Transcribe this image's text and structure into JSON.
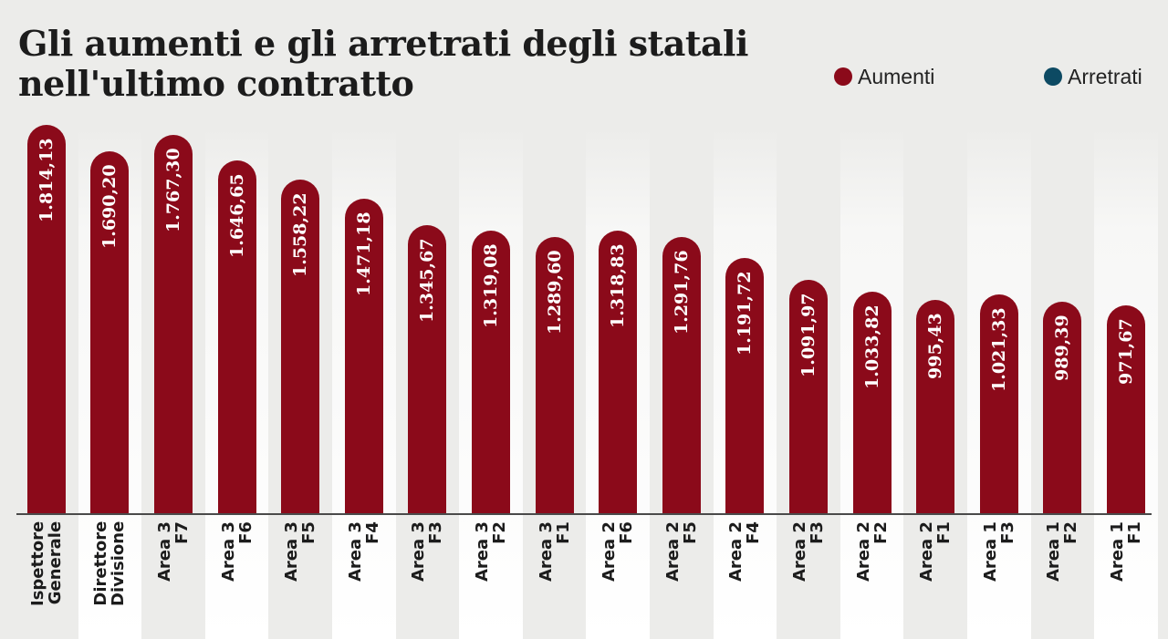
{
  "chart_data": {
    "type": "bar",
    "title": "Gli aumenti e gli arretrati degli statali nell'ultimo contratto",
    "legend": [
      {
        "name": "Aumenti",
        "color": "#8b0a1a"
      },
      {
        "name": "Arretrati",
        "color": "#0d4a63"
      }
    ],
    "categories": [
      [
        "Ispettore",
        "Generale"
      ],
      [
        "Direttore",
        "Divisione"
      ],
      [
        "Area 3",
        "F7"
      ],
      [
        "Area 3",
        "F6"
      ],
      [
        "Area 3",
        "F5"
      ],
      [
        "Area 3",
        "F4"
      ],
      [
        "Area 3",
        "F3"
      ],
      [
        "Area 3",
        "F2"
      ],
      [
        "Area 3",
        "F1"
      ],
      [
        "Area 2",
        "F6"
      ],
      [
        "Area 2",
        "F5"
      ],
      [
        "Area 2",
        "F4"
      ],
      [
        "Area 2",
        "F3"
      ],
      [
        "Area 2",
        "F2"
      ],
      [
        "Area 2",
        "F1"
      ],
      [
        "Area 1",
        "F3"
      ],
      [
        "Area 1",
        "F2"
      ],
      [
        "Area 1",
        "F1"
      ]
    ],
    "series": [
      {
        "name": "Aumenti",
        "color": "#8b0a1a",
        "values": [
          1814.13,
          1690.2,
          1767.3,
          1646.65,
          1558.22,
          1471.18,
          1345.67,
          1319.08,
          1289.6,
          1318.83,
          1291.76,
          1191.72,
          1091.97,
          1033.82,
          995.43,
          1021.33,
          989.39,
          971.67
        ],
        "labels": [
          "1.814,13",
          "1.690,20",
          "1.767,30",
          "1.646,65",
          "1.558,22",
          "1.471,18",
          "1.345,67",
          "1.319,08",
          "1.289,60",
          "1.318,83",
          "1.291,76",
          "1.191,72",
          "1.091,97",
          "1.033,82",
          "995,43",
          "1.021,33",
          "989,39",
          "971,67"
        ]
      }
    ],
    "ylim": [
      0,
      1814.13
    ],
    "grid": false,
    "legend_position": "top-right",
    "background_colors": [
      "#ececea",
      "#f7f7f6"
    ]
  }
}
